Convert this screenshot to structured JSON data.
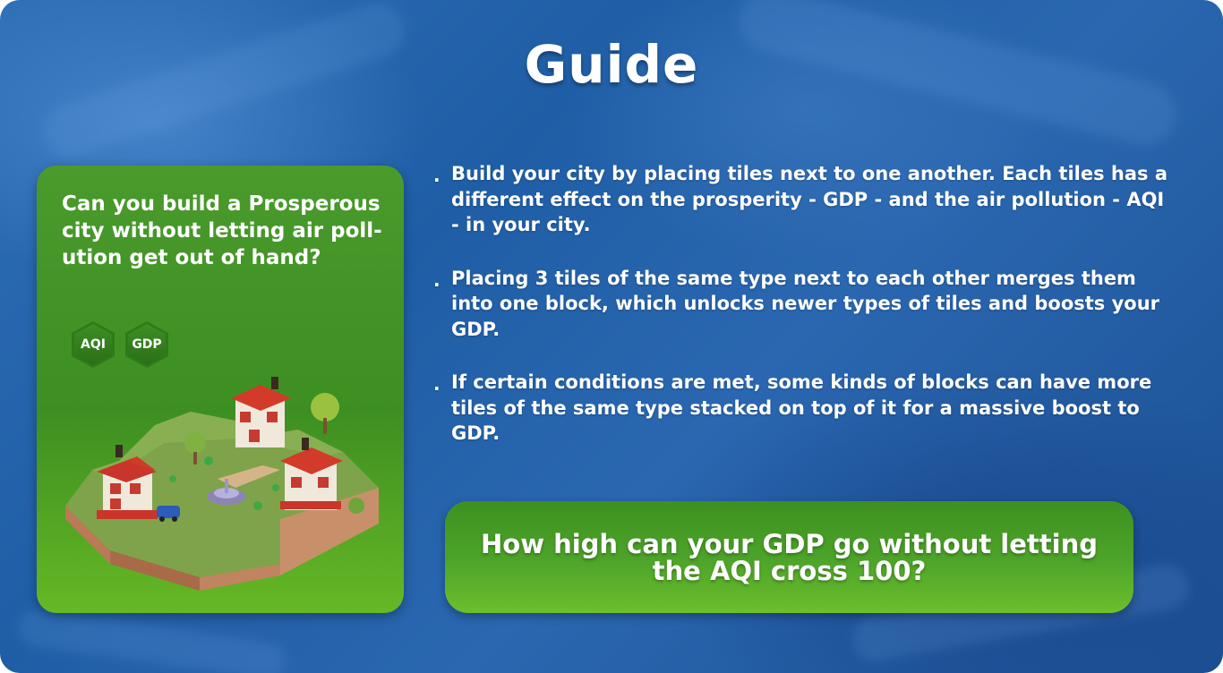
{
  "colors": {
    "background": "#2a67b0",
    "card_green": "#3d8f22",
    "cta_green": "#4ea52a",
    "hex_badge": "#2f7a1a",
    "text": "#ffffff"
  },
  "title": "Guide",
  "left_card": {
    "question": "Can you build a Prosperous city without letting air poll- ution get out of hand?",
    "badges": [
      {
        "label": "AQI",
        "icon": "hexagon-badge"
      },
      {
        "label": "GDP",
        "icon": "hexagon-badge"
      }
    ],
    "illustration": "isometric-city-island-image"
  },
  "guide": {
    "bullet": ".",
    "items": [
      "Build your city by placing tiles next to one another. Each tiles has a different effect on the prosperity - GDP - and the air pollution - AQI - in your city.",
      "Placing 3 tiles of the same type next to each other merges them into one block, which unlocks newer types of tiles and boosts your GDP.",
      "If certain conditions are met, some kinds of blocks can have more tiles of the same type stacked on top of it for a massive boost to GDP."
    ]
  },
  "challenge": "How high can your GDP go without letting the AQI cross 100?"
}
